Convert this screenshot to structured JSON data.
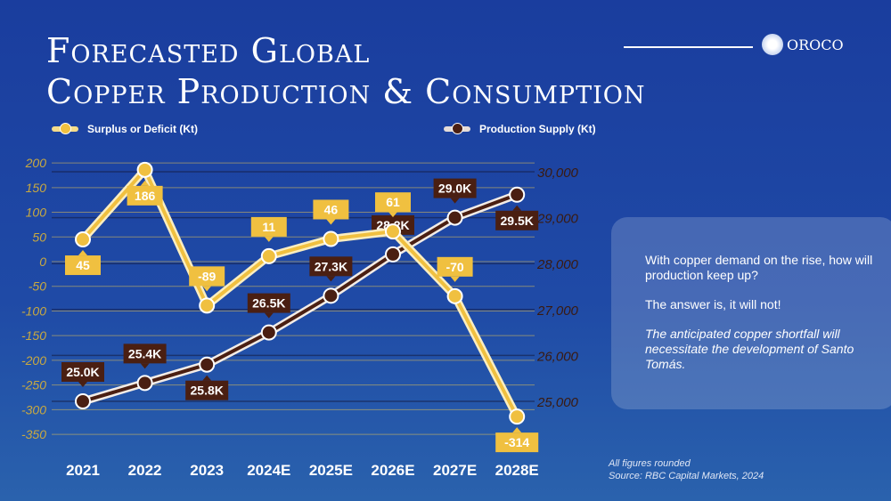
{
  "title": {
    "line1": "Forecasted Global",
    "line2": "Copper Production & Consumption"
  },
  "logo": {
    "text": "OROCO"
  },
  "colors": {
    "surplus": "#f0c040",
    "supply": "#4a1f12",
    "left_axis": "#c9a940",
    "right_axis": "#3a1a10"
  },
  "chart_data": {
    "type": "line",
    "categories": [
      "2021",
      "2022",
      "2023",
      "2024E",
      "2025E",
      "2026E",
      "2027E",
      "2028E"
    ],
    "series": [
      {
        "name": "Surplus or Deficit (Kt)",
        "axis": "left",
        "values": [
          45,
          186,
          -89,
          11,
          46,
          61,
          -70,
          -314
        ],
        "labels": [
          "45",
          "186",
          "-89",
          "11",
          "46",
          "61",
          "-70",
          "-314"
        ]
      },
      {
        "name": "Production Supply (Kt)",
        "axis": "right",
        "values": [
          25000,
          25400,
          25800,
          26500,
          27300,
          28200,
          29000,
          29500
        ],
        "labels": [
          "25.0K",
          "25.4K",
          "25.8K",
          "26.5K",
          "27.3K",
          "28.2K",
          "29.0K",
          "29.5K"
        ]
      }
    ],
    "left_axis": {
      "ylim": [
        -350,
        200
      ],
      "ticks": [
        "200",
        "150",
        "100",
        "50",
        "0",
        "-50",
        "-100",
        "-150",
        "-200",
        "-250",
        "-300",
        "-350"
      ]
    },
    "right_axis": {
      "ylim": [
        25000,
        30000
      ],
      "ticks": [
        "30,000",
        "29,000",
        "28,000",
        "27,000",
        "26,000",
        "25,000"
      ]
    },
    "legend_position": "top",
    "grid": true
  },
  "panel": {
    "p1": "With copper demand on the rise, how will production keep up?",
    "p2": "The answer is, it will not!",
    "p3": "The anticipated copper shortfall will necessitate the development of Santo Tomás."
  },
  "footer": {
    "line1": "All figures rounded",
    "line2": "Source: RBC Capital Markets, 2024"
  }
}
